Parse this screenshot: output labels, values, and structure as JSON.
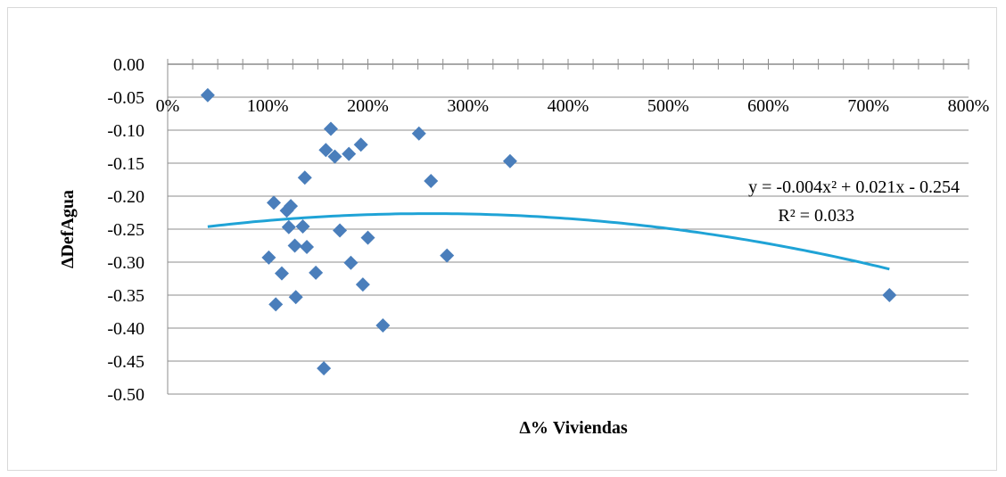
{
  "chart_data": {
    "type": "scatter",
    "title": "",
    "xlabel": "Δ% Viviendas",
    "ylabel": "ΔDefAgua",
    "xlim": [
      0,
      8
    ],
    "ylim": [
      -0.5,
      0
    ],
    "x_tick_labels": [
      "0%",
      "100%",
      "200%",
      "300%",
      "400%",
      "500%",
      "600%",
      "700%",
      "800%"
    ],
    "y_tick_labels": [
      "0.00",
      "-0.05",
      "-0.10",
      "-0.15",
      "-0.20",
      "-0.25",
      "-0.30",
      "-0.35",
      "-0.40",
      "-0.45",
      "-0.50"
    ],
    "grid": true,
    "marker_color": "#4a7ebb",
    "trendline_color": "#1fa3d6",
    "points": [
      {
        "x": 0.4,
        "y": -0.047
      },
      {
        "x": 1.01,
        "y": -0.293
      },
      {
        "x": 1.06,
        "y": -0.21
      },
      {
        "x": 1.08,
        "y": -0.364
      },
      {
        "x": 1.14,
        "y": -0.317
      },
      {
        "x": 1.19,
        "y": -0.222
      },
      {
        "x": 1.21,
        "y": -0.247
      },
      {
        "x": 1.23,
        "y": -0.215
      },
      {
        "x": 1.27,
        "y": -0.275
      },
      {
        "x": 1.28,
        "y": -0.353
      },
      {
        "x": 1.35,
        "y": -0.246
      },
      {
        "x": 1.37,
        "y": -0.172
      },
      {
        "x": 1.39,
        "y": -0.277
      },
      {
        "x": 1.48,
        "y": -0.316
      },
      {
        "x": 1.56,
        "y": -0.461
      },
      {
        "x": 1.58,
        "y": -0.13
      },
      {
        "x": 1.63,
        "y": -0.098
      },
      {
        "x": 1.67,
        "y": -0.14
      },
      {
        "x": 1.72,
        "y": -0.252
      },
      {
        "x": 1.81,
        "y": -0.136
      },
      {
        "x": 1.83,
        "y": -0.301
      },
      {
        "x": 1.93,
        "y": -0.122
      },
      {
        "x": 1.95,
        "y": -0.334
      },
      {
        "x": 2.0,
        "y": -0.263
      },
      {
        "x": 2.15,
        "y": -0.396
      },
      {
        "x": 2.51,
        "y": -0.105
      },
      {
        "x": 2.63,
        "y": -0.177
      },
      {
        "x": 2.79,
        "y": -0.29
      },
      {
        "x": 3.42,
        "y": -0.147
      },
      {
        "x": 7.21,
        "y": -0.35
      }
    ],
    "trendline": {
      "type": "polynomial",
      "coefficients": [
        -0.004,
        0.021,
        -0.254
      ],
      "x_range": [
        0.4,
        7.21
      ],
      "equation": "y = -0.004x² + 0.021x - 0.254",
      "r_squared": "R² = 0.033"
    }
  }
}
